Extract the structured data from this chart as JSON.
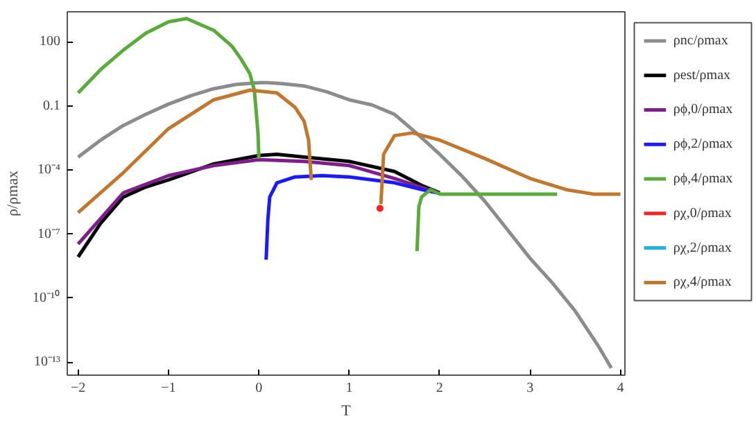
{
  "chart_data": {
    "type": "line",
    "xlabel": "T",
    "ylabel": "ρ/ρmax",
    "log": "y",
    "grid": false,
    "legend": "right",
    "line_style": "solid",
    "marker": "none",
    "xlim": [
      -2.12,
      4.05
    ],
    "ylim": [
      2.5e-14,
      2500
    ],
    "xticks": [
      {
        "value": -2,
        "label": "−2"
      },
      {
        "value": -1,
        "label": "−1"
      },
      0,
      1,
      2,
      3,
      4
    ],
    "yticks": [
      {
        "value": 1e-13,
        "label": "10⁻¹³"
      },
      {
        "value": 1e-10,
        "label": "10⁻¹⁰"
      },
      {
        "value": 1e-07,
        "label": "10⁻⁷"
      },
      {
        "value": 0.0001,
        "label": "10⁻⁴"
      },
      0.1,
      100
    ],
    "series": [
      {
        "name": "ρnc/ρmax",
        "color": "#8c8c8c",
        "x": [
          -2,
          -1.75,
          -1.5,
          -1.25,
          -1,
          -0.75,
          -0.5,
          -0.25,
          0,
          0.1,
          0.25,
          0.5,
          0.75,
          1,
          1.25,
          1.5,
          1.75,
          2,
          2.25,
          2.5,
          2.75,
          3,
          3.25,
          3.5,
          3.75,
          3.9
        ],
        "values": [
          0.0004,
          0.0025,
          0.012,
          0.04,
          0.12,
          0.3,
          0.63,
          1,
          1.2,
          1.2,
          1.1,
          0.85,
          0.45,
          0.19,
          0.11,
          0.04,
          0.005,
          0.00054,
          5e-05,
          3.4e-06,
          1.6e-07,
          7.4e-09,
          5e-10,
          2.5e-11,
          6.3e-13,
          5.4e-14
        ]
      },
      {
        "name": "ρest/ρmax",
        "color": "#000000",
        "x": [
          -2,
          -1.75,
          -1.5,
          -1.25,
          -1,
          -0.5,
          0,
          0.2,
          0.5,
          1,
          1.5,
          1.8,
          2
        ],
        "values": [
          8.5e-09,
          3.2e-07,
          5.4e-06,
          1.6e-05,
          3.4e-05,
          0.00019,
          0.00047,
          0.00054,
          0.0004,
          0.00025,
          8.5e-05,
          1.9e-05,
          8.5e-06
        ]
      },
      {
        "name": "ρϕ,0/ρmax",
        "color": "#7f1d8c",
        "x": [
          -2,
          -1.5,
          -1,
          -0.5,
          0,
          0.5,
          1,
          1.5,
          2
        ],
        "values": [
          3.4e-08,
          8.5e-06,
          5.4e-05,
          0.00016,
          0.0003,
          0.00025,
          0.00016,
          4e-05,
          8e-06
        ]
      },
      {
        "name": "ρϕ,2/ρmax",
        "color": "#1a1aff",
        "x": [
          0.08,
          0.1,
          0.12,
          0.2,
          0.4,
          0.7,
          1,
          1.5,
          1.8,
          2
        ],
        "values": [
          6.3e-09,
          5e-07,
          5.4e-06,
          2.5e-05,
          4.7e-05,
          5.4e-05,
          4.7e-05,
          2.5e-05,
          1.2e-05,
          8e-06
        ]
      },
      {
        "name": "ρϕ,4/ρmax",
        "color": "#5aab3c",
        "x": [
          -2,
          -1.75,
          -1.5,
          -1.25,
          -1,
          -0.8,
          -0.5,
          -0.3,
          -0.2,
          -0.1,
          -0.05,
          -0.01,
          0,
          1,
          1.75,
          1.77,
          1.8,
          1.9,
          2,
          2.5,
          3,
          3.3
        ],
        "values": [
          0.4,
          5,
          40,
          250,
          850,
          1200,
          340,
          63,
          16,
          3.2,
          0.54,
          0.0054,
          0.00034,
          null,
          1.6e-08,
          1.9e-06,
          5.4e-06,
          1.2e-05,
          7.4e-06,
          7.4e-06,
          7.4e-06,
          7.4e-06
        ]
      },
      {
        "name": "ρχ,0/ρmax",
        "color": "#ff2020",
        "type": "scatter",
        "marker": "circle",
        "x": [
          1.34
        ],
        "values": [
          1.6e-06
        ]
      },
      {
        "name": "ρχ,2/ρmax",
        "color": "#1eb4e0"
      },
      {
        "name": "ρχ,4/ρmax",
        "color": "#c07830",
        "x": [
          -2,
          -1.5,
          -1,
          -0.5,
          -0.1,
          0.2,
          0.4,
          0.5,
          0.55,
          0.58,
          1,
          1.35,
          1.38,
          1.5,
          1.7,
          2,
          2.5,
          3,
          3.4,
          3.7,
          4
        ],
        "values": [
          1e-06,
          7.4e-05,
          0.0085,
          0.19,
          0.54,
          0.4,
          0.085,
          0.019,
          0.0025,
          3.4e-05,
          null,
          2.5e-06,
          0.00054,
          0.004,
          0.0054,
          0.0025,
          0.00034,
          4e-05,
          1.2e-05,
          7.4e-06,
          7.4e-06
        ]
      }
    ]
  }
}
